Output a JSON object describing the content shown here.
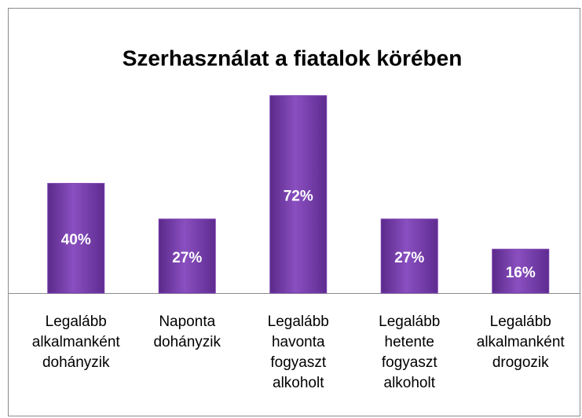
{
  "chart_data": {
    "type": "bar",
    "title": "Szerhasználat a fiatalok körében",
    "categories": [
      "Legalább alkalmanként dohányzik",
      "Naponta dohányzik",
      "Legalább havonta fogyaszt alkoholt",
      "Legalább hetente fogyaszt alkoholt",
      "Legalább alkalmanként drogozik"
    ],
    "values": [
      40,
      27,
      72,
      27,
      16
    ],
    "value_labels": [
      "40%",
      "27%",
      "72%",
      "27%",
      "16%"
    ],
    "color": "#7a3fae"
  }
}
